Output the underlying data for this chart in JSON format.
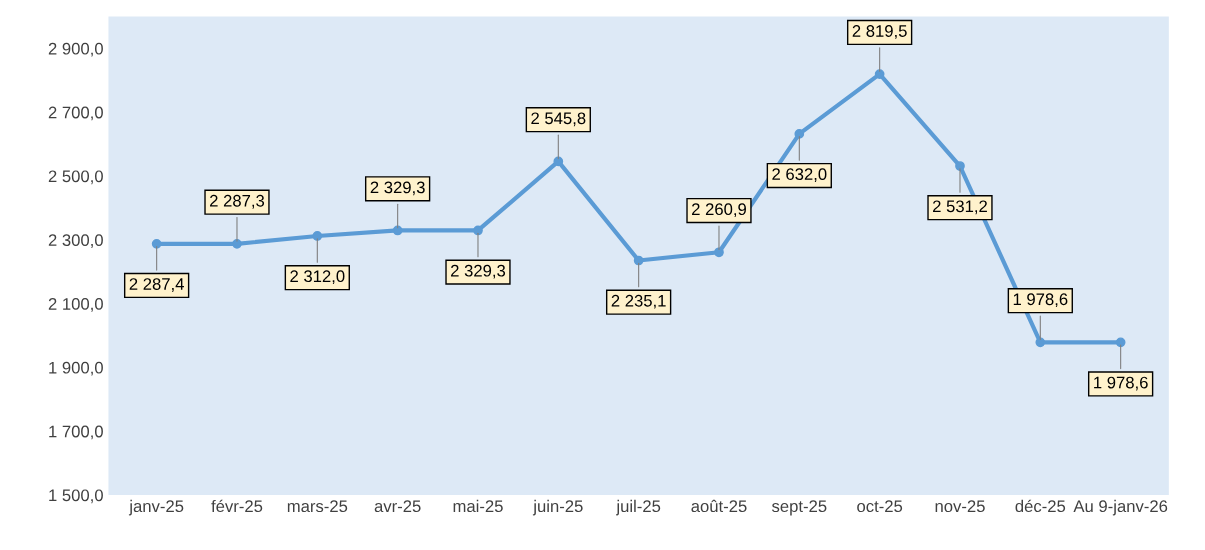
{
  "chart_data": {
    "type": "line",
    "categories": [
      "janv-25",
      "févr-25",
      "mars-25",
      "avr-25",
      "mai-25",
      "juin-25",
      "juil-25",
      "août-25",
      "sept-25",
      "oct-25",
      "nov-25",
      "déc-25",
      "Au 9-janv-26"
    ],
    "series": [
      {
        "color": "#5b9bd5",
        "values": [
          2287.4,
          2287.3,
          2312.0,
          2329.3,
          2329.3,
          2545.8,
          2235.1,
          2260.9,
          2632.0,
          2819.5,
          2531.2,
          1978.6,
          1978.6
        ],
        "value_labels": [
          "2 287,4",
          "2 287,3",
          "2 312,0",
          "2 329,3",
          "2 329,3",
          "2 545,8",
          "2 235,1",
          "2 260,9",
          "2 632,0",
          "2 819,5",
          "2 531,2",
          "1 978,6",
          "1 978,6"
        ]
      }
    ],
    "ylim": [
      1500,
      3000
    ],
    "yticks": [
      {
        "value": 1500,
        "label": "1 500,0"
      },
      {
        "value": 1700,
        "label": "1 700,0"
      },
      {
        "value": 1900,
        "label": "1 900,0"
      },
      {
        "value": 2100,
        "label": "2 100,0"
      },
      {
        "value": 2300,
        "label": "2 300,0"
      },
      {
        "value": 2500,
        "label": "2 500,0"
      },
      {
        "value": 2700,
        "label": "2 700,0"
      },
      {
        "value": 2900,
        "label": "2 900,0"
      }
    ],
    "grid": false,
    "marker": "circle",
    "line_style": "solid"
  }
}
